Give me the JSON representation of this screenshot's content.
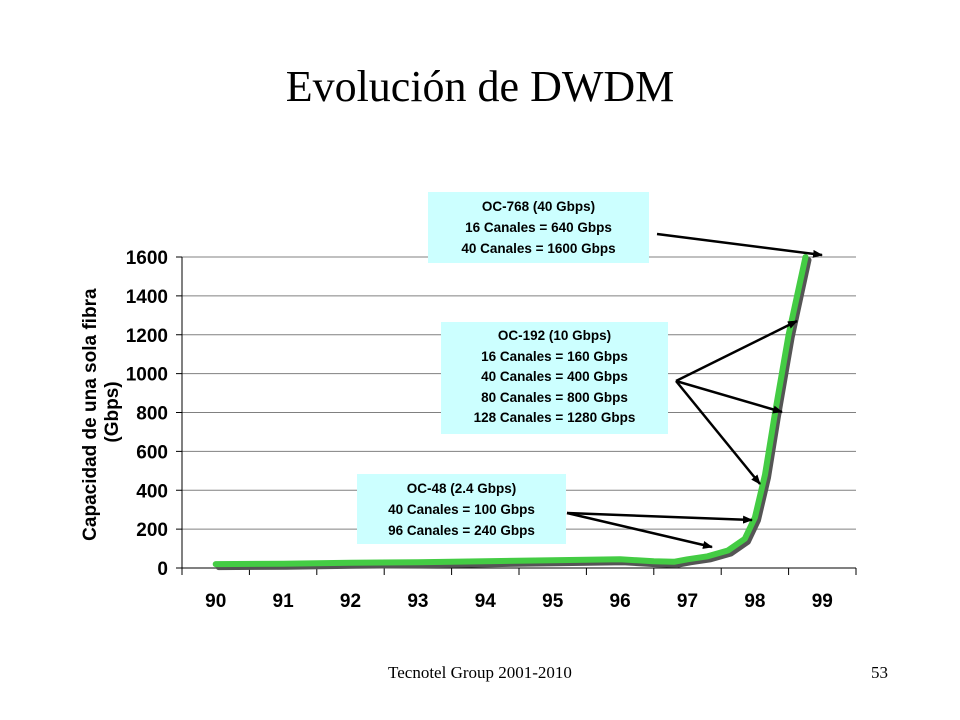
{
  "slide": {
    "title": "Evolución de DWDM",
    "footer": "Tecnotel Group 2001-2010",
    "page_number": "53"
  },
  "chart_data": {
    "type": "line",
    "title": "",
    "ylabel_lines": [
      "Capacidad de una sola fibra",
      "(Gbps)"
    ],
    "xlabel": "",
    "categories": [
      "90",
      "91",
      "92",
      "93",
      "94",
      "95",
      "96",
      "97",
      "98",
      "99"
    ],
    "ylim": [
      0,
      1600
    ],
    "yticks": [
      "0",
      "200",
      "400",
      "600",
      "800",
      "1000",
      "1200",
      "1400",
      "1600"
    ],
    "grid": true,
    "legend": "none",
    "series": [
      {
        "color": "#44cc44",
        "shadow_color": "#555555",
        "points": [
          [
            0,
            20
          ],
          [
            1,
            22
          ],
          [
            2,
            27
          ],
          [
            3,
            30
          ],
          [
            4,
            35
          ],
          [
            5,
            40
          ],
          [
            6,
            45
          ],
          [
            6.5,
            35
          ],
          [
            6.8,
            32
          ],
          [
            7,
            45
          ],
          [
            7.3,
            60
          ],
          [
            7.6,
            90
          ],
          [
            7.85,
            150
          ],
          [
            8,
            260
          ],
          [
            8.15,
            480
          ],
          [
            8.3,
            800
          ],
          [
            8.5,
            1200
          ],
          [
            8.75,
            1600
          ]
        ]
      }
    ],
    "annotations": [
      {
        "id": "oc768",
        "lines": [
          "OC-768  (40 Gbps)",
          "16 Canales  = 640 Gbps",
          "40 Canales  = 1600 Gbps"
        ],
        "background": "#ccffff"
      },
      {
        "id": "oc192",
        "lines": [
          "OC-192  (10 Gbps)",
          "16 Canales  = 160 Gbps",
          "40 Canales  = 400 Gbps",
          "80 Canales  = 800 Gbps",
          "128 Canales  = 1280 Gbps"
        ],
        "background": "#ccffff"
      },
      {
        "id": "oc48",
        "lines": [
          "OC-48  (2.4 Gbps)",
          "40 Canales  = 100 Gbps",
          "96 Canales  = 240 Gbps"
        ],
        "background": "#ccffff"
      }
    ]
  }
}
